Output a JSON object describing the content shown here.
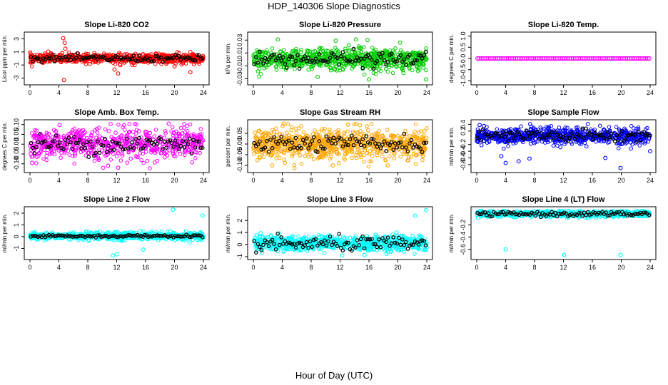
{
  "figure": {
    "title": "HDP_140306  Slope Diagnostics",
    "xlabel": "Hour of Day (UTC)"
  },
  "colors": {
    "red": "#ff0000",
    "green": "#00cc00",
    "magenta": "#ff00ff",
    "orange": "#ffa500",
    "blue": "#0000ff",
    "cyan": "#00ffff",
    "black": "#000000"
  },
  "chart_data": [
    {
      "type": "scatter",
      "title": "Slope Li-820 CO2",
      "ylabel": "Licor ppm per min.",
      "color": "red",
      "xlim": [
        0,
        24
      ],
      "xticks": [
        0,
        4,
        8,
        12,
        16,
        20,
        24
      ],
      "ylim": [
        -3.6,
        3.6
      ],
      "yticks": [
        -3,
        -1,
        1,
        3
      ],
      "center": 0,
      "spread": 0.35,
      "n": 700,
      "hourly_center": 0,
      "hourly_spread": 0.25,
      "outliers": [
        [
          4.6,
          3.1
        ],
        [
          4.8,
          2.4
        ],
        [
          4.9,
          1.5
        ],
        [
          4.7,
          -3.3
        ],
        [
          11.7,
          -1.7
        ],
        [
          12.2,
          -2.3
        ],
        [
          12.5,
          -1.0
        ],
        [
          22.2,
          -2.1
        ],
        [
          20.0,
          -1.2
        ]
      ]
    },
    {
      "type": "scatter",
      "title": "Slope Li-820 Pressure",
      "ylabel": "kPa per min.",
      "color": "green",
      "xlim": [
        0,
        24
      ],
      "xticks": [
        0,
        4,
        8,
        12,
        16,
        20,
        24
      ],
      "ylim": [
        -0.035,
        0.038
      ],
      "yticks": [
        -0.03,
        -0.01,
        0.01,
        0.03
      ],
      "center": 0.0,
      "spread": 0.008,
      "n": 750,
      "hourly_center": 0.0,
      "hourly_spread": 0.006,
      "outliers": [
        [
          3.4,
          0.031
        ],
        [
          8.9,
          -0.027
        ],
        [
          11.4,
          0.029
        ],
        [
          13.2,
          0.022
        ],
        [
          14.2,
          0.031
        ],
        [
          15.8,
          0.03
        ],
        [
          16.0,
          -0.031
        ],
        [
          23.9,
          -0.031
        ],
        [
          20.3,
          0.026
        ]
      ]
    },
    {
      "type": "scatter",
      "title": "Slope Li-820 Temp.",
      "ylabel": "degrees C per min.",
      "color": "magenta",
      "xlim": [
        0,
        24
      ],
      "xticks": [
        0,
        4,
        8,
        12,
        16,
        20,
        24
      ],
      "ylim": [
        -1.05,
        1.05
      ],
      "yticks": [
        -1.0,
        -0.5,
        0.0,
        0.5,
        1.0
      ],
      "center": 0,
      "spread": 0.0,
      "n": 96,
      "hourly_center": 0,
      "hourly_spread": 0.0,
      "mode": "line",
      "outliers": []
    },
    {
      "type": "scatter",
      "title": "Slope Amb. Box Temp.",
      "ylabel": "degrees C per min.",
      "color": "magenta",
      "xlim": [
        0,
        24
      ],
      "xticks": [
        0,
        4,
        8,
        12,
        16,
        20,
        24
      ],
      "ylim": [
        -0.13,
        0.11
      ],
      "yticks": [
        -0.1,
        -0.05,
        0.0,
        0.05,
        0.1
      ],
      "center": 0,
      "spread": 0.04,
      "n": 650,
      "hourly_center": 0,
      "hourly_spread": 0.025,
      "outliers": [
        [
          4.1,
          0.098
        ],
        [
          12.2,
          -0.12
        ],
        [
          19.2,
          0.105
        ],
        [
          10.8,
          -0.11
        ],
        [
          0.3,
          -0.095
        ]
      ]
    },
    {
      "type": "scatter",
      "title": "Slope Gas Stream RH",
      "ylabel": "percent per min.",
      "color": "orange",
      "xlim": [
        0,
        24
      ],
      "xticks": [
        0,
        4,
        8,
        12,
        16,
        20,
        24
      ],
      "ylim": [
        -0.12,
        0.1
      ],
      "yticks": [
        -0.1,
        -0.05,
        0.0,
        0.05
      ],
      "center": 0,
      "spread": 0.035,
      "n": 750,
      "hourly_center": 0,
      "hourly_spread": 0.02,
      "outliers": [
        [
          4.2,
          0.095
        ],
        [
          2.6,
          -0.1
        ],
        [
          11.0,
          -0.1
        ],
        [
          13.1,
          0.09
        ],
        [
          18.6,
          -0.1
        ]
      ]
    },
    {
      "type": "scatter",
      "title": "Slope Sample Flow",
      "ylabel": "ml/min per min.",
      "color": "blue",
      "xlim": [
        0,
        24
      ],
      "xticks": [
        0,
        4,
        8,
        12,
        16,
        20,
        24
      ],
      "ylim": [
        -0.95,
        0.45
      ],
      "yticks": [
        -0.8,
        -0.6,
        -0.4,
        -0.2,
        0.2,
        0.4
      ],
      "center": 0.05,
      "spread": 0.12,
      "n": 750,
      "hourly_center": 0.05,
      "hourly_spread": 0.1,
      "outliers": [
        [
          0.4,
          0.38
        ],
        [
          1.0,
          0.35
        ],
        [
          4.0,
          -0.75
        ],
        [
          5.8,
          -0.7
        ],
        [
          3.4,
          -0.55
        ],
        [
          7.3,
          -0.62
        ],
        [
          19.9,
          -0.9
        ],
        [
          17.8,
          -0.6
        ],
        [
          24.0,
          -0.4
        ]
      ]
    },
    {
      "type": "scatter",
      "title": "Slope Line 2 Flow",
      "ylabel": "ml/min per min.",
      "color": "cyan",
      "xlim": [
        0,
        24
      ],
      "xticks": [
        0,
        4,
        8,
        12,
        16,
        20,
        24
      ],
      "ylim": [
        -1.7,
        2.3
      ],
      "yticks": [
        -1,
        0,
        1,
        2
      ],
      "center": 0.05,
      "spread": 0.15,
      "n": 750,
      "hourly_center": 0.05,
      "hourly_spread": 0.05,
      "outliers": [
        [
          12.0,
          -1.5
        ],
        [
          11.5,
          -1.6
        ],
        [
          15.7,
          -1.1
        ],
        [
          19.8,
          2.3
        ],
        [
          23.9,
          1.8
        ],
        [
          22.1,
          -0.5
        ]
      ]
    },
    {
      "type": "scatter",
      "title": "Slope Line 3 Flow",
      "ylabel": "ml/min per min.",
      "color": "cyan",
      "xlim": [
        0,
        24
      ],
      "xticks": [
        0,
        4,
        8,
        12,
        16,
        20,
        24
      ],
      "ylim": [
        -1.0,
        2.9
      ],
      "yticks": [
        -1,
        0,
        1,
        2
      ],
      "center": 0.1,
      "spread": 0.3,
      "n": 750,
      "hourly_center": 0.05,
      "hourly_spread": 0.3,
      "outliers": [
        [
          1.0,
          0.95
        ],
        [
          12.3,
          -0.9
        ],
        [
          15.4,
          -0.85
        ],
        [
          22.4,
          2.4
        ],
        [
          23.9,
          2.85
        ],
        [
          19.8,
          1.0
        ]
      ]
    },
    {
      "type": "scatter",
      "title": "Slope Line 4 (LT) Flow",
      "ylabel": "ml/min per min.",
      "color": "cyan",
      "xlim": [
        0,
        24
      ],
      "xticks": [
        0,
        4,
        8,
        12,
        16,
        20,
        24
      ],
      "ylim": [
        -0.72,
        0.05
      ],
      "yticks": [
        -0.6,
        -0.4,
        -0.2
      ],
      "center": -0.02,
      "spread": 0.025,
      "n": 750,
      "hourly_center": -0.02,
      "hourly_spread": 0.02,
      "outliers": [
        [
          4.0,
          -0.6
        ],
        [
          12.1,
          -0.69
        ],
        [
          19.9,
          -0.69
        ]
      ]
    }
  ]
}
